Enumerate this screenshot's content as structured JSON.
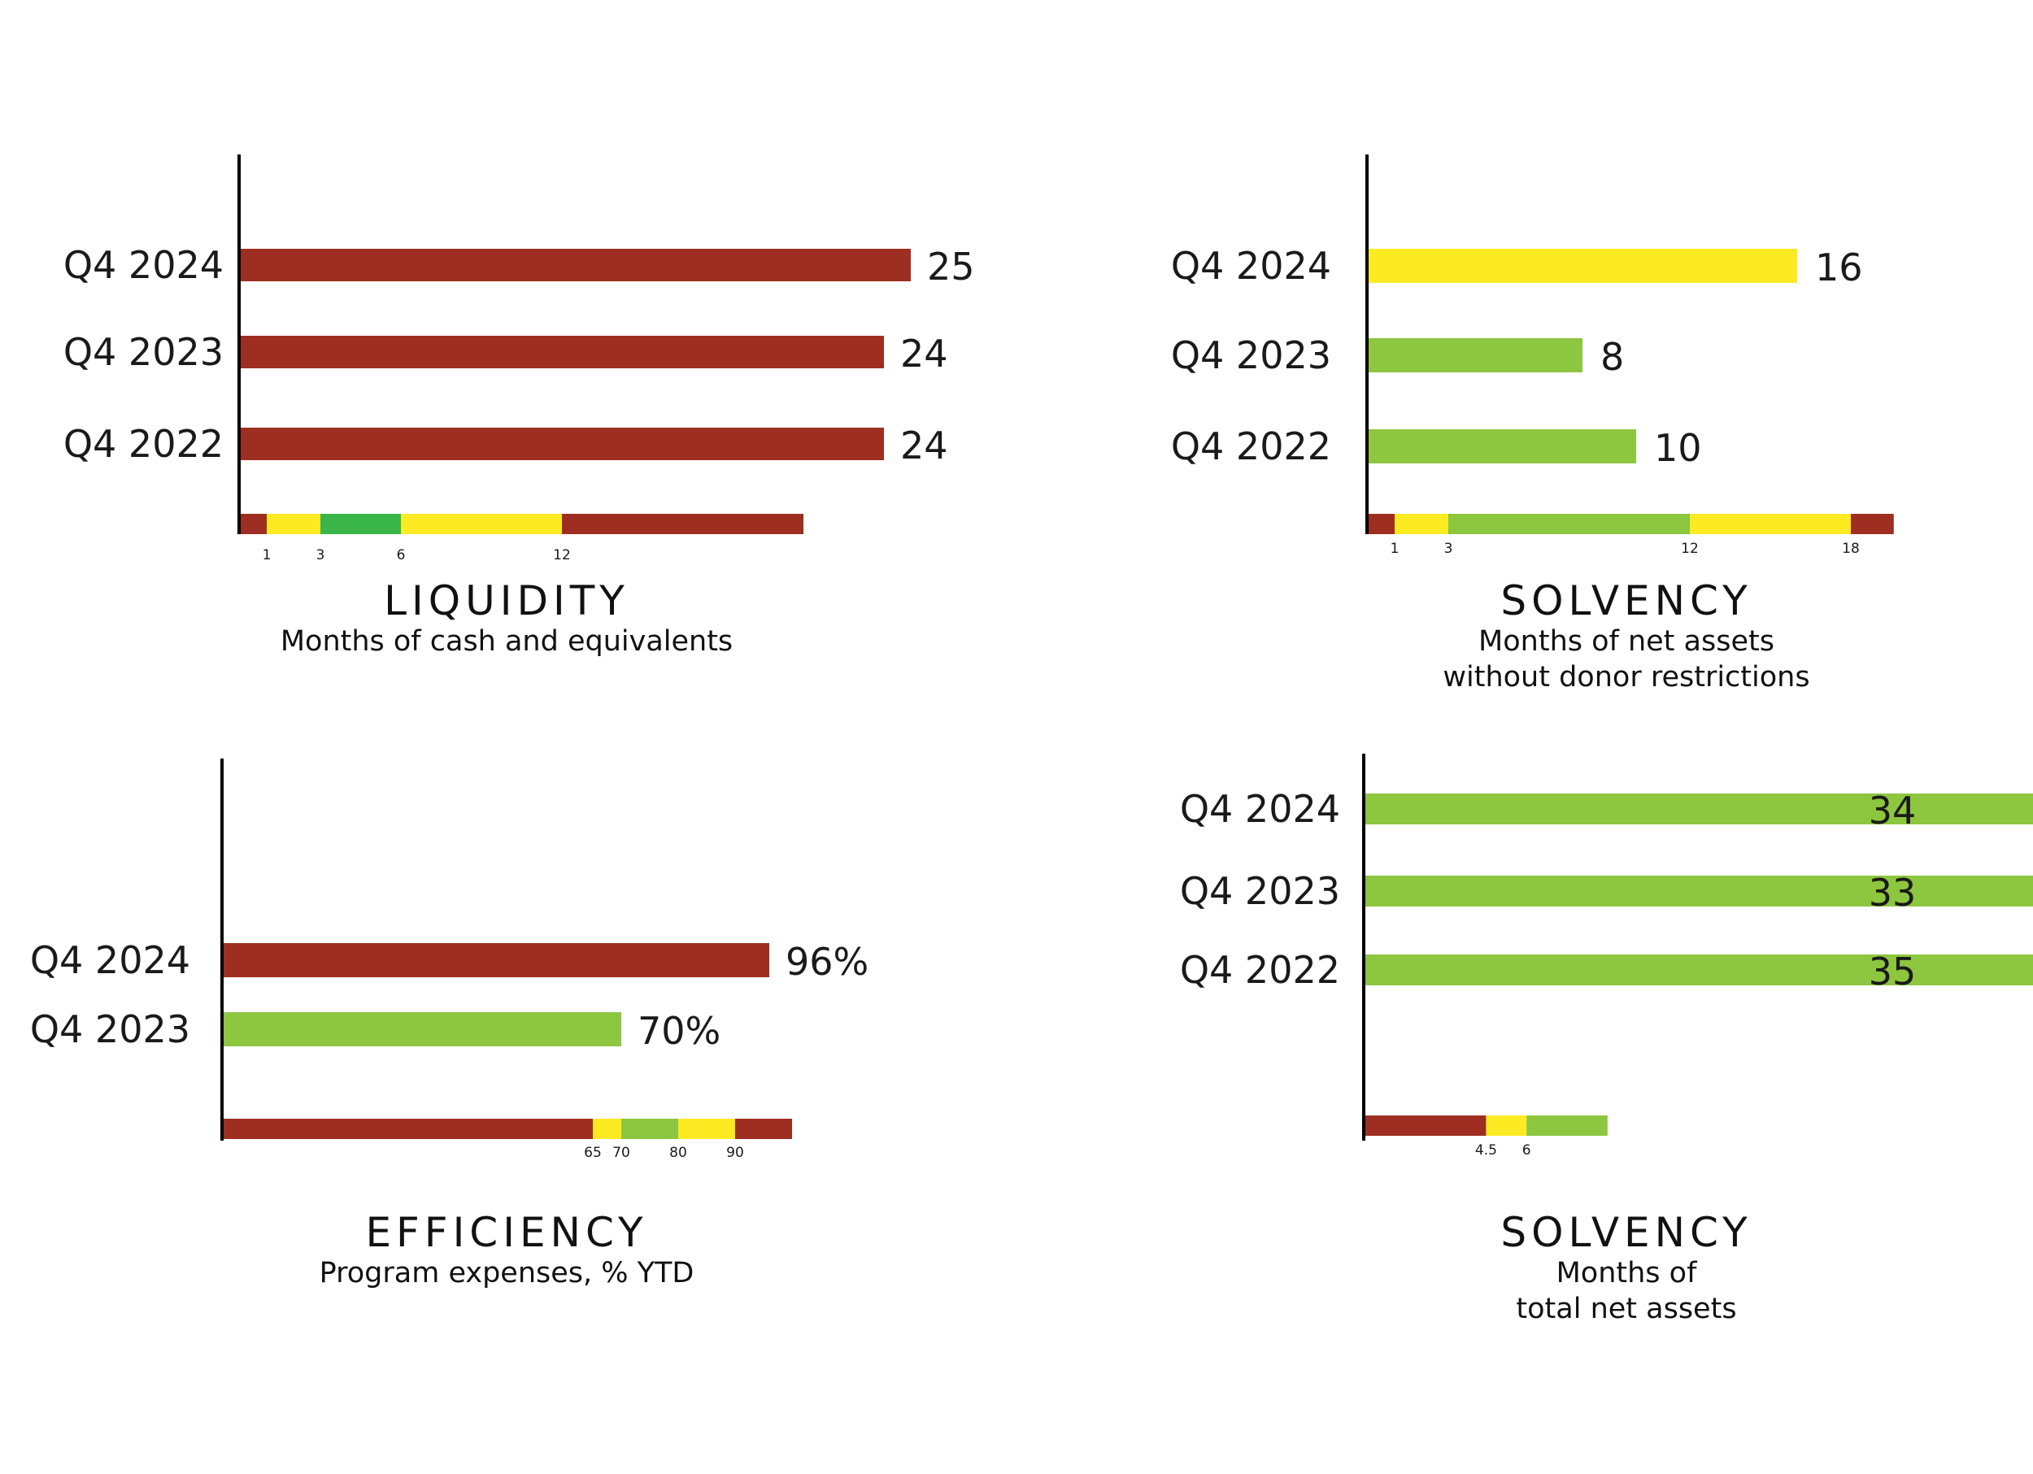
{
  "colors": {
    "red": "#9e2e22",
    "yellow": "#fcea23",
    "light_green": "#8dc63f",
    "green": "#39b54a",
    "axis": "#000000"
  },
  "chart_data": [
    {
      "type": "bar",
      "orientation": "horizontal",
      "title": "LIQUIDITY",
      "subtitle": [
        "Months of cash and equivalents"
      ],
      "categories": [
        "Q4 2024",
        "Q4 2023",
        "Q4 2022"
      ],
      "values": [
        25,
        24,
        24
      ],
      "value_labels": [
        "25",
        "24",
        "24"
      ],
      "bar_colors": [
        "red",
        "red",
        "red"
      ],
      "xlim": [
        0,
        33
      ],
      "scale": {
        "segments": [
          {
            "from": 0,
            "to": 1,
            "color": "red"
          },
          {
            "from": 1,
            "to": 3,
            "color": "yellow"
          },
          {
            "from": 3,
            "to": 6,
            "color": "green"
          },
          {
            "from": 6,
            "to": 12,
            "color": "yellow"
          },
          {
            "from": 12,
            "to": 21,
            "color": "red"
          }
        ],
        "ticks": [
          1,
          3,
          6,
          12
        ],
        "tick_labels": [
          "1",
          "3",
          "6",
          "12"
        ]
      }
    },
    {
      "type": "bar",
      "orientation": "horizontal",
      "title": "SOLVENCY",
      "subtitle": [
        "Months of net assets",
        "without donor restrictions"
      ],
      "categories": [
        "Q4 2024",
        "Q4 2023",
        "Q4 2022"
      ],
      "values": [
        16,
        8,
        10
      ],
      "value_labels": [
        "16",
        "8",
        "10"
      ],
      "bar_colors": [
        "yellow",
        "light_green",
        "light_green"
      ],
      "xlim": [
        0,
        27
      ],
      "scale": {
        "segments": [
          {
            "from": 0,
            "to": 1,
            "color": "red"
          },
          {
            "from": 1,
            "to": 3,
            "color": "yellow"
          },
          {
            "from": 3,
            "to": 12,
            "color": "light_green"
          },
          {
            "from": 12,
            "to": 18,
            "color": "yellow"
          },
          {
            "from": 18,
            "to": 19.6,
            "color": "red"
          }
        ],
        "ticks": [
          1,
          3,
          12,
          18
        ],
        "tick_labels": [
          "1",
          "3",
          "12",
          "18"
        ]
      }
    },
    {
      "type": "bar",
      "orientation": "horizontal",
      "title": "EFFICIENCY",
      "subtitle": [
        "Program expenses, % YTD"
      ],
      "categories": [
        "Q4 2024",
        "Q4 2023"
      ],
      "values": [
        96,
        70
      ],
      "value_labels": [
        "96%",
        "70%"
      ],
      "bar_colors": [
        "red",
        "light_green"
      ],
      "xlim": [
        0,
        126
      ],
      "scale": {
        "segments": [
          {
            "from": 0,
            "to": 65,
            "color": "red"
          },
          {
            "from": 65,
            "to": 70,
            "color": "yellow"
          },
          {
            "from": 70,
            "to": 80,
            "color": "light_green"
          },
          {
            "from": 80,
            "to": 90,
            "color": "yellow"
          },
          {
            "from": 90,
            "to": 100,
            "color": "red"
          }
        ],
        "ticks": [
          65,
          70,
          80,
          90
        ],
        "tick_labels": [
          "65",
          "70",
          "80",
          "90"
        ]
      }
    },
    {
      "type": "bar",
      "orientation": "horizontal",
      "title": "SOLVENCY",
      "subtitle": [
        "Months of",
        "total net assets"
      ],
      "categories": [
        "Q4 2024",
        "Q4 2023",
        "Q4 2022"
      ],
      "values": [
        34,
        33,
        35
      ],
      "value_labels": [
        "34",
        "33",
        "35"
      ],
      "bar_colors": [
        "light_green",
        "light_green",
        "light_green"
      ],
      "xlim": [
        0,
        9
      ],
      "clipped": true,
      "scale": {
        "segments": [
          {
            "from": 0,
            "to": 4.5,
            "color": "red"
          },
          {
            "from": 4.5,
            "to": 6,
            "color": "yellow"
          },
          {
            "from": 6,
            "to": 9,
            "color": "light_green"
          }
        ],
        "ticks": [
          4.5,
          6
        ],
        "tick_labels": [
          "4.5",
          "6"
        ]
      }
    }
  ]
}
